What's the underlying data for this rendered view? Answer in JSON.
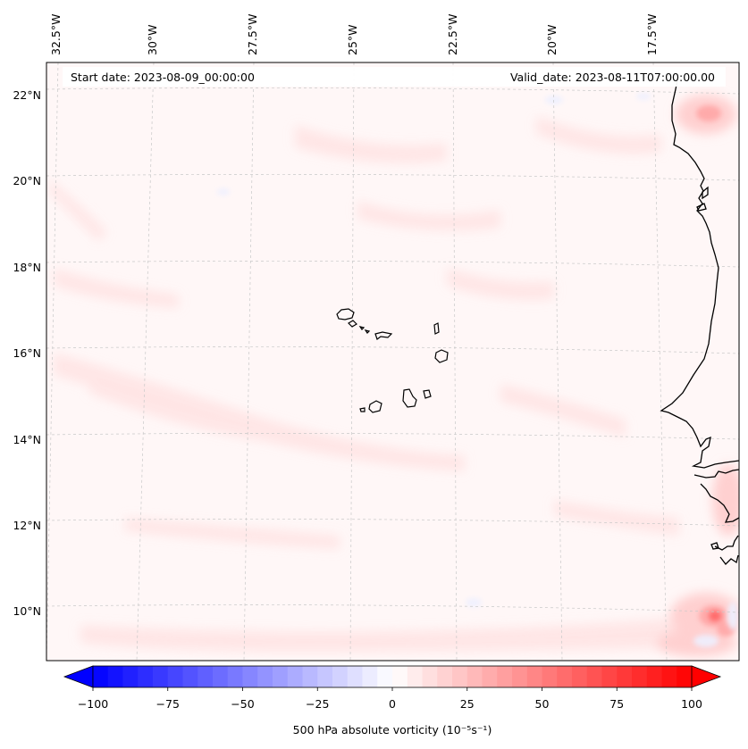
{
  "header": {
    "start_date": "Start date: 2023-08-09_00:00:00",
    "valid_date": "Valid_date: 2023-08-11T07:00:00.00"
  },
  "map": {
    "longitude_ticks": [
      "32.5°W",
      "30°W",
      "27.5°W",
      "25°W",
      "22.5°W",
      "20°W",
      "17.5°W"
    ],
    "latitude_ticks": [
      "22°N",
      "20°N",
      "18°N",
      "16°N",
      "14°N",
      "12°N",
      "10°N"
    ],
    "field": "500 hPa absolute vorticity",
    "colors": {
      "max_positive": "#ff0000",
      "max_negative": "#0000ff",
      "coast": "#000000",
      "grid": "#c8c8c8"
    }
  },
  "colorbar": {
    "ticks": [
      "−100",
      "−75",
      "−50",
      "−25",
      "0",
      "25",
      "50",
      "75",
      "100"
    ],
    "label": "500 hPa absolute vorticity (10⁻⁵s⁻¹)",
    "min": -100,
    "max": 100,
    "step": 5
  }
}
